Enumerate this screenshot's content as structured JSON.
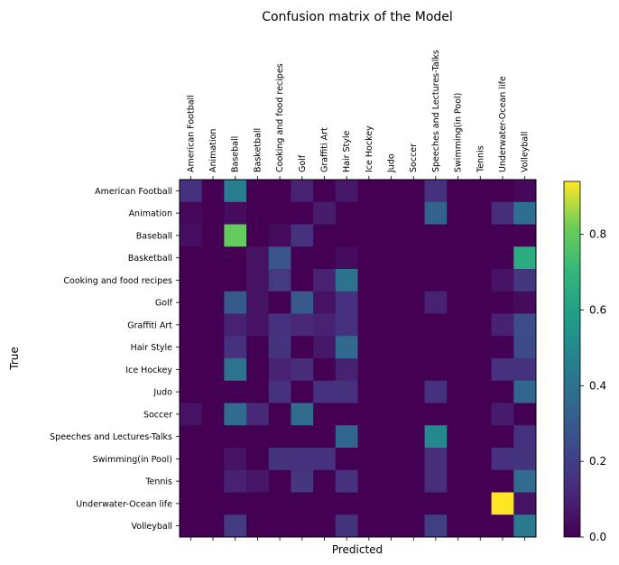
{
  "chart_data": {
    "type": "heatmap",
    "title": "Confusion matrix of the Model",
    "xlabel": "Predicted",
    "ylabel": "True",
    "x_categories": [
      "American Football",
      "Animation",
      "Baseball",
      "Basketball",
      "Cooking and food recipes",
      "Golf",
      "Graffiti Art",
      "Hair Style",
      "Ice Hockey",
      "Judo",
      "Soccer",
      "Speeches and Lectures-Talks",
      "Swimming(in Pool)",
      "Tennis",
      "Underwater-Ocean life",
      "Volleyball"
    ],
    "y_categories": [
      "American Football",
      "Animation",
      "Baseball",
      "Basketball",
      "Cooking and food recipes",
      "Golf",
      "Graffiti Art",
      "Hair Style",
      "Ice Hockey",
      "Judo",
      "Soccer",
      "Speeches and Lectures-Talks",
      "Swimming(in Pool)",
      "Tennis",
      "Underwater-Ocean life",
      "Volleyball"
    ],
    "colormap": "viridis",
    "vmin": 0.0,
    "vmax": 0.94,
    "colorbar_ticks": [
      "0.0",
      "0.2",
      "0.4",
      "0.6",
      "0.8"
    ],
    "matrix": [
      [
        0.15,
        0,
        0.45,
        0,
        0,
        0.1,
        0,
        0.07,
        0,
        0,
        0,
        0.15,
        0,
        0,
        0,
        0.02
      ],
      [
        0.02,
        0,
        0.03,
        0,
        0,
        0,
        0.08,
        0,
        0,
        0,
        0,
        0.33,
        0,
        0,
        0.14,
        0.38
      ],
      [
        0.04,
        0,
        0.8,
        0,
        0.03,
        0.15,
        0,
        0,
        0,
        0,
        0,
        0,
        0,
        0,
        0,
        0
      ],
      [
        0,
        0,
        0,
        0.05,
        0.28,
        0,
        0,
        0.03,
        0,
        0,
        0,
        0,
        0,
        0,
        0,
        0.65
      ],
      [
        0,
        0,
        0,
        0.05,
        0.18,
        0,
        0.1,
        0.4,
        0,
        0,
        0,
        0,
        0,
        0,
        0.05,
        0.17
      ],
      [
        0,
        0,
        0.3,
        0.05,
        0,
        0.3,
        0.05,
        0.15,
        0,
        0,
        0,
        0.1,
        0,
        0,
        0,
        0.03
      ],
      [
        0,
        0,
        0.1,
        0.05,
        0.15,
        0.12,
        0.1,
        0.15,
        0,
        0,
        0,
        0,
        0,
        0,
        0.1,
        0.25
      ],
      [
        0,
        0,
        0.15,
        0,
        0.16,
        0,
        0.07,
        0.36,
        0,
        0,
        0,
        0,
        0,
        0,
        0,
        0.24
      ],
      [
        0,
        0,
        0.4,
        0,
        0.1,
        0.13,
        0,
        0.1,
        0,
        0,
        0,
        0,
        0,
        0,
        0.15,
        0.15
      ],
      [
        0,
        0,
        0,
        0,
        0.15,
        0,
        0.15,
        0.15,
        0,
        0,
        0,
        0.15,
        0,
        0,
        0,
        0.35
      ],
      [
        0.05,
        0,
        0.37,
        0.12,
        0,
        0.37,
        0,
        0,
        0,
        0,
        0,
        0,
        0,
        0,
        0.08,
        0
      ],
      [
        0,
        0,
        0,
        0,
        0,
        0,
        0,
        0.35,
        0,
        0,
        0,
        0.5,
        0,
        0,
        0,
        0.15
      ],
      [
        0,
        0,
        0.05,
        0,
        0.16,
        0.15,
        0.15,
        0,
        0,
        0,
        0,
        0.14,
        0,
        0,
        0.15,
        0.16
      ],
      [
        0,
        0,
        0.1,
        0.06,
        0,
        0.17,
        0,
        0.15,
        0,
        0,
        0,
        0.14,
        0,
        0,
        0,
        0.37
      ],
      [
        0,
        0,
        0,
        0,
        0,
        0,
        0,
        0,
        0,
        0,
        0,
        0,
        0,
        0,
        0.94,
        0.05
      ],
      [
        0,
        0,
        0.18,
        0,
        0,
        0,
        0,
        0.16,
        0,
        0,
        0,
        0.2,
        0,
        0,
        0,
        0.43
      ]
    ]
  }
}
